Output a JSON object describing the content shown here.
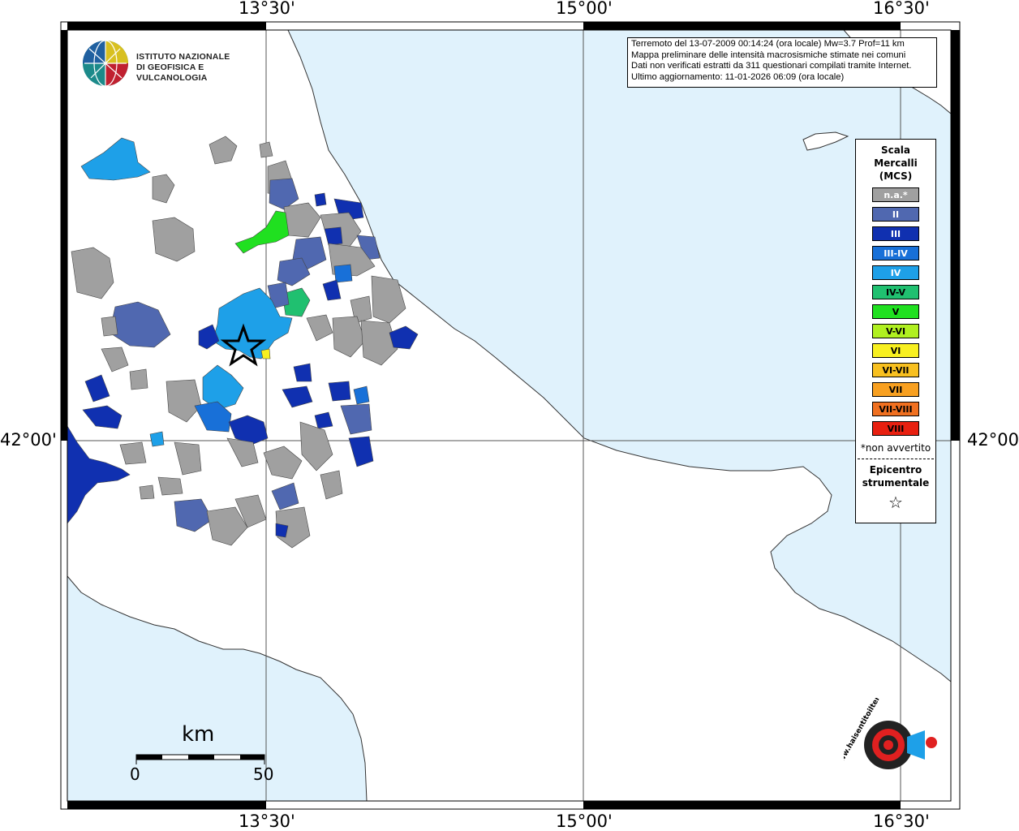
{
  "header": {
    "institute_line1": "ISTITUTO NAZIONALE",
    "institute_line2": "DI GEOFISICA E VULCANOLOGIA"
  },
  "info_box": {
    "line1": "Terremoto del 13-07-2009 00:14:24 (ora locale) Mw=3.7 Prof=11 km",
    "line2": "Mappa preliminare delle intensità macrosismiche stimate nei comuni",
    "line3": "Dati non verificati estratti da 311 questionari compilati tramite Internet.",
    "line4": "Ultimo aggiornamento: 11-01-2026 06:09 (ora locale)"
  },
  "coords": {
    "top": [
      "13°30'",
      "15°00'",
      "16°30'"
    ],
    "bottom": [
      "13°30'",
      "15°00'",
      "16°30'"
    ],
    "left": "42°00'",
    "right": "42°00'"
  },
  "legend": {
    "title1": "Scala",
    "title2": "Mercalli",
    "title3": "(MCS)",
    "items": [
      {
        "label": "n.a.*",
        "color": "#a0a0a0",
        "text": "#ffffff"
      },
      {
        "label": "II",
        "color": "#5068b0",
        "text": "#ffffff"
      },
      {
        "label": "III",
        "color": "#1030b0",
        "text": "#ffffff"
      },
      {
        "label": "III-IV",
        "color": "#1870d8",
        "text": "#ffffff"
      },
      {
        "label": "IV",
        "color": "#1ea0e8",
        "text": "#ffffff"
      },
      {
        "label": "IV-V",
        "color": "#20c070",
        "text": "#000000"
      },
      {
        "label": "V",
        "color": "#20e020",
        "text": "#000000"
      },
      {
        "label": "V-VI",
        "color": "#b0f020",
        "text": "#000000"
      },
      {
        "label": "VI",
        "color": "#f8f020",
        "text": "#000000"
      },
      {
        "label": "VI-VII",
        "color": "#f8c020",
        "text": "#000000"
      },
      {
        "label": "VII",
        "color": "#f8a020",
        "text": "#000000"
      },
      {
        "label": "VII-VIII",
        "color": "#f07020",
        "text": "#000000"
      },
      {
        "label": "VIII",
        "color": "#e82010",
        "text": "#000000"
      }
    ],
    "note": "*non avvertito",
    "epicenter_line1": "Epicentro",
    "epicenter_line2": "strumentale",
    "star": "☆"
  },
  "scale": {
    "unit": "km",
    "start": "0",
    "end": "50"
  },
  "colors": {
    "sea": "#e0f2fc",
    "land": "#ffffff",
    "frame": "#000000"
  },
  "badge": {
    "text": "www.haisentitoilterremoto.it"
  }
}
